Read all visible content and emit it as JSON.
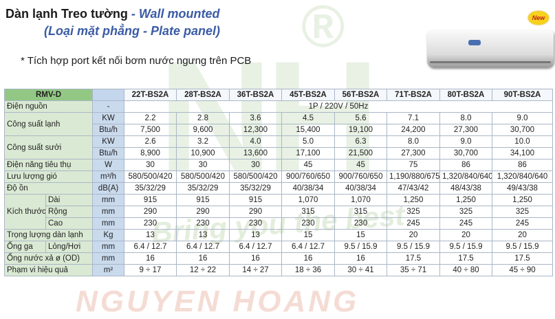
{
  "header": {
    "title_vi": "Dàn lạnh Treo tường",
    "title_en": "- Wall mounted",
    "subtitle": "(Loại mặt phẳng - Plate panel)",
    "note": "* Tích hợp port kết nối bơm nước ngưng trên PCB",
    "badge": "New",
    "watermark_letters": "NH",
    "watermark_mark": "®",
    "watermark_slogan": "Bring you the best",
    "watermark_brand": "NGUYEN HOANG"
  },
  "table": {
    "corner": "RMV-D",
    "models": [
      "22T-BS2A",
      "28T-BS2A",
      "36T-BS2A",
      "45T-BS2A",
      "56T-BS2A",
      "71T-BS2A",
      "80T-BS2A",
      "90T-BS2A"
    ],
    "power": {
      "label": "Điện nguồn",
      "unit": "-",
      "value": "1P / 220V / 50Hz"
    },
    "cooling": {
      "label": "Công suất lạnh",
      "kw": {
        "unit": "KW",
        "values": [
          "2.2",
          "2.8",
          "3.6",
          "4.5",
          "5.6",
          "7.1",
          "8.0",
          "9.0"
        ]
      },
      "btu": {
        "unit": "Btu/h",
        "values": [
          "7,500",
          "9,600",
          "12,300",
          "15,400",
          "19,100",
          "24,200",
          "27,300",
          "30,700"
        ]
      }
    },
    "heating": {
      "label": "Công suất sưởi",
      "kw": {
        "unit": "KW",
        "values": [
          "2.6",
          "3.2",
          "4.0",
          "5.0",
          "6.3",
          "8.0",
          "9.0",
          "10.0"
        ]
      },
      "btu": {
        "unit": "Btu/h",
        "values": [
          "8,900",
          "10,900",
          "13,600",
          "17,100",
          "21,500",
          "27,300",
          "30,700",
          "34,100"
        ]
      }
    },
    "consumption": {
      "label": "Điện năng tiêu thụ",
      "unit": "W",
      "values": [
        "30",
        "30",
        "30",
        "45",
        "45",
        "75",
        "86",
        "86"
      ]
    },
    "airflow": {
      "label": "Lưu lượng gió",
      "unit": "m³/h",
      "values": [
        "580/500/420",
        "580/500/420",
        "580/500/420",
        "900/760/650",
        "900/760/650",
        "1,190/880/675",
        "1,320/840/640",
        "1,320/840/640"
      ]
    },
    "noise": {
      "label": "Độ ồn",
      "unit": "dB(A)",
      "values": [
        "35/32/29",
        "35/32/29",
        "35/32/29",
        "40/38/34",
        "40/38/34",
        "47/43/42",
        "48/43/38",
        "49/43/38"
      ]
    },
    "size": {
      "label": "Kích thước",
      "length": {
        "label": "Dài",
        "unit": "mm",
        "values": [
          "915",
          "915",
          "915",
          "1,070",
          "1,070",
          "1,250",
          "1,250",
          "1,250"
        ]
      },
      "depth": {
        "label": "Rộng",
        "unit": "mm",
        "values": [
          "290",
          "290",
          "290",
          "315",
          "315",
          "325",
          "325",
          "325"
        ]
      },
      "height": {
        "label": "Cao",
        "unit": "mm",
        "values": [
          "230",
          "230",
          "230",
          "230",
          "230",
          "245",
          "245",
          "245"
        ]
      }
    },
    "weight": {
      "label": "Trọng lượng dàn lạnh",
      "unit": "Kg",
      "values": [
        "13",
        "13",
        "13",
        "15",
        "15",
        "20",
        "20",
        "20"
      ]
    },
    "pipe": {
      "label": "Ống ga",
      "sub": "Lỏng/Hơi",
      "unit": "mm",
      "values": [
        "6.4 / 12.7",
        "6.4 / 12.7",
        "6.4 / 12.7",
        "6.4 / 12.7",
        "9.5 / 15.9",
        "9.5 / 15.9",
        "9.5 / 15.9",
        "9.5 / 15.9"
      ]
    },
    "drain": {
      "label": "Ống nước xả ø (OD)",
      "unit": "mm",
      "values": [
        "16",
        "16",
        "16",
        "16",
        "16",
        "17.5",
        "17.5",
        "17.5"
      ]
    },
    "range": {
      "label": "Phạm vi hiệu quả",
      "unit": "m²",
      "values": [
        "9 ÷ 17",
        "12 ÷ 22",
        "14 ÷ 27",
        "18 ÷ 36",
        "30 ÷ 41",
        "35 ÷ 71",
        "40 ÷ 80",
        "45 ÷ 90"
      ]
    }
  }
}
